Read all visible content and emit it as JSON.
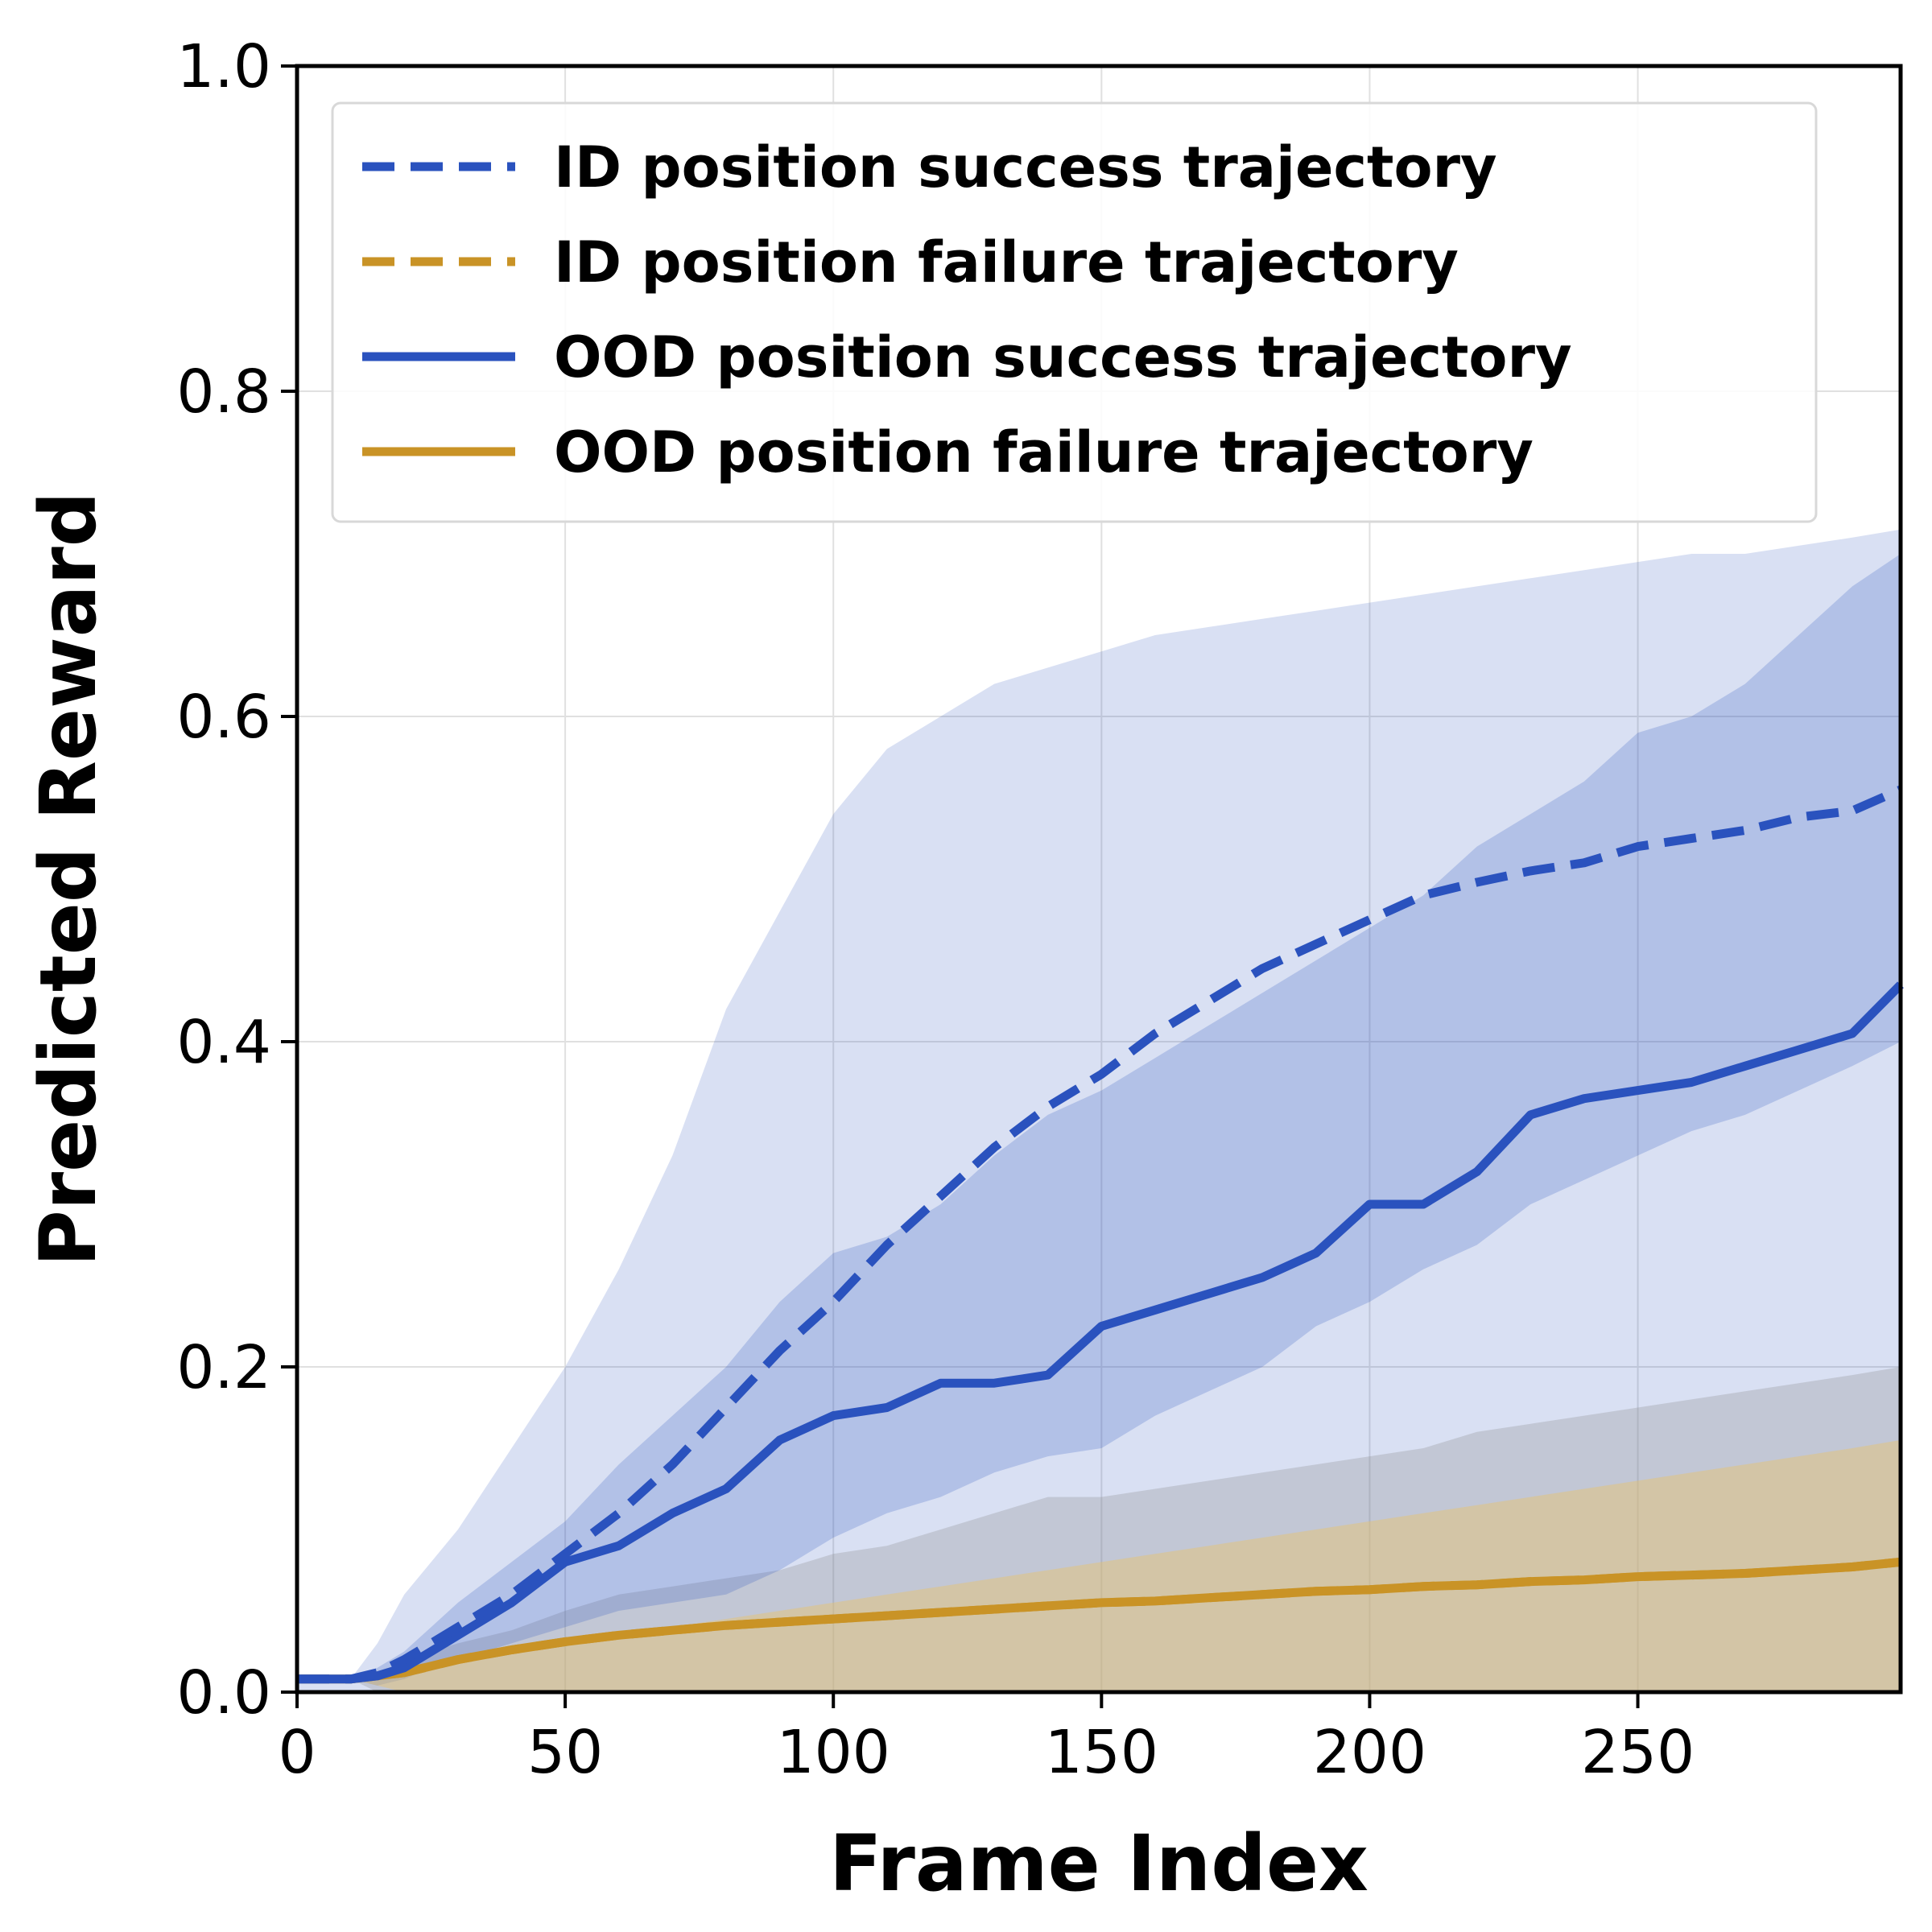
{
  "chart_data": {
    "type": "line",
    "title": "",
    "xlabel": "Frame Index",
    "ylabel": "Predicted Reward",
    "xlim": [
      0,
      299
    ],
    "ylim": [
      0,
      1.0
    ],
    "xticks": [
      0,
      50,
      100,
      150,
      200,
      250
    ],
    "yticks": [
      0.0,
      0.2,
      0.4,
      0.6,
      0.8,
      1.0
    ],
    "xtick_labels": [
      "0",
      "50",
      "100",
      "150",
      "200",
      "250"
    ],
    "ytick_labels": [
      "0.0",
      "0.2",
      "0.4",
      "0.6",
      "0.8",
      "1.0"
    ],
    "grid": true,
    "legend_position": "top",
    "x": [
      0,
      10,
      15,
      20,
      25,
      30,
      40,
      50,
      60,
      70,
      80,
      90,
      100,
      110,
      120,
      130,
      140,
      150,
      160,
      170,
      180,
      190,
      200,
      210,
      220,
      230,
      240,
      250,
      260,
      270,
      280,
      290,
      299
    ],
    "series": [
      {
        "name": "ID position success trajectory",
        "color": "#2a52be",
        "style": "dashed",
        "values": [
          0.008,
          0.008,
          0.012,
          0.02,
          0.03,
          0.04,
          0.06,
          0.085,
          0.11,
          0.14,
          0.175,
          0.21,
          0.24,
          0.275,
          0.305,
          0.335,
          0.36,
          0.38,
          0.405,
          0.425,
          0.445,
          0.46,
          0.475,
          0.49,
          0.498,
          0.505,
          0.51,
          0.52,
          0.525,
          0.53,
          0.538,
          0.542,
          0.555
        ],
        "band_lower": [
          0.0,
          0.0,
          0.0,
          0.0,
          0.0,
          0.0,
          0.0,
          0.0,
          0.0,
          0.0,
          0.0,
          0.0,
          0.0,
          0.0,
          0.0,
          0.0,
          0.0,
          0.0,
          0.0,
          0.0,
          0.0,
          0.0,
          0.0,
          0.0,
          0.0,
          0.0,
          0.0,
          0.0,
          0.0,
          0.0,
          0.0,
          0.0,
          0.0
        ],
        "band_upper": [
          0.008,
          0.008,
          0.03,
          0.06,
          0.08,
          0.1,
          0.15,
          0.2,
          0.26,
          0.33,
          0.42,
          0.48,
          0.54,
          0.58,
          0.6,
          0.62,
          0.63,
          0.64,
          0.65,
          0.655,
          0.66,
          0.665,
          0.67,
          0.675,
          0.68,
          0.685,
          0.69,
          0.695,
          0.7,
          0.7,
          0.705,
          0.71,
          0.715
        ]
      },
      {
        "name": "ID position failure trajectory",
        "color": "#c99326",
        "style": "dashed",
        "values": [
          0.008,
          0.008,
          0.01,
          0.012,
          0.016,
          0.02,
          0.026,
          0.031,
          0.035,
          0.038,
          0.041,
          0.043,
          0.045,
          0.047,
          0.049,
          0.051,
          0.053,
          0.055,
          0.056,
          0.058,
          0.06,
          0.062,
          0.063,
          0.065,
          0.066,
          0.068,
          0.069,
          0.071,
          0.072,
          0.073,
          0.075,
          0.077,
          0.08
        ],
        "band_lower": [
          0.008,
          0.008,
          0.0,
          0.0,
          0.0,
          0.0,
          0.0,
          0.0,
          0.0,
          0.0,
          0.0,
          0.0,
          0.0,
          0.0,
          0.0,
          0.0,
          0.0,
          0.0,
          0.0,
          0.0,
          0.0,
          0.0,
          0.0,
          0.0,
          0.0,
          0.0,
          0.0,
          0.0,
          0.0,
          0.0,
          0.0,
          0.0,
          0.0
        ],
        "band_upper": [
          0.008,
          0.008,
          0.012,
          0.018,
          0.025,
          0.03,
          0.038,
          0.05,
          0.06,
          0.065,
          0.07,
          0.075,
          0.085,
          0.09,
          0.1,
          0.11,
          0.12,
          0.12,
          0.125,
          0.13,
          0.135,
          0.14,
          0.145,
          0.15,
          0.16,
          0.165,
          0.17,
          0.175,
          0.18,
          0.185,
          0.19,
          0.195,
          0.2
        ]
      },
      {
        "name": "OOD position success trajectory",
        "color": "#2a52be",
        "style": "solid",
        "values": [
          0.008,
          0.008,
          0.01,
          0.015,
          0.025,
          0.035,
          0.055,
          0.08,
          0.09,
          0.11,
          0.125,
          0.155,
          0.17,
          0.175,
          0.19,
          0.19,
          0.195,
          0.225,
          0.235,
          0.245,
          0.255,
          0.27,
          0.3,
          0.3,
          0.32,
          0.355,
          0.365,
          0.37,
          0.375,
          0.385,
          0.395,
          0.405,
          0.435
        ],
        "band_lower": [
          0.008,
          0.008,
          0.004,
          0.008,
          0.015,
          0.02,
          0.03,
          0.04,
          0.05,
          0.055,
          0.06,
          0.075,
          0.095,
          0.11,
          0.12,
          0.135,
          0.145,
          0.15,
          0.17,
          0.185,
          0.2,
          0.225,
          0.24,
          0.26,
          0.275,
          0.3,
          0.315,
          0.33,
          0.345,
          0.355,
          0.37,
          0.385,
          0.4
        ],
        "band_upper": [
          0.008,
          0.008,
          0.015,
          0.025,
          0.04,
          0.055,
          0.08,
          0.105,
          0.14,
          0.17,
          0.2,
          0.24,
          0.27,
          0.28,
          0.3,
          0.33,
          0.355,
          0.37,
          0.39,
          0.41,
          0.43,
          0.45,
          0.47,
          0.49,
          0.52,
          0.54,
          0.56,
          0.59,
          0.6,
          0.62,
          0.65,
          0.68,
          0.7
        ]
      },
      {
        "name": "OOD position failure trajectory",
        "color": "#c99326",
        "style": "solid",
        "values": [
          0.008,
          0.008,
          0.01,
          0.012,
          0.016,
          0.02,
          0.026,
          0.031,
          0.035,
          0.038,
          0.041,
          0.043,
          0.045,
          0.047,
          0.049,
          0.051,
          0.053,
          0.055,
          0.056,
          0.058,
          0.06,
          0.062,
          0.063,
          0.065,
          0.066,
          0.068,
          0.069,
          0.071,
          0.072,
          0.073,
          0.075,
          0.077,
          0.08
        ],
        "band_lower": [
          0.008,
          0.008,
          0.004,
          0.0,
          0.0,
          0.0,
          0.0,
          0.0,
          0.0,
          0.0,
          0.0,
          0.0,
          0.0,
          0.0,
          0.0,
          0.0,
          0.0,
          0.0,
          0.0,
          0.0,
          0.0,
          0.0,
          0.0,
          0.0,
          0.0,
          0.0,
          0.0,
          0.0,
          0.0,
          0.0,
          0.0,
          0.0,
          0.0
        ],
        "band_upper": [
          0.008,
          0.008,
          0.01,
          0.012,
          0.016,
          0.02,
          0.025,
          0.03,
          0.035,
          0.04,
          0.045,
          0.05,
          0.055,
          0.06,
          0.065,
          0.07,
          0.075,
          0.08,
          0.085,
          0.09,
          0.095,
          0.1,
          0.105,
          0.11,
          0.115,
          0.12,
          0.125,
          0.13,
          0.135,
          0.14,
          0.145,
          0.15,
          0.155
        ]
      }
    ]
  }
}
